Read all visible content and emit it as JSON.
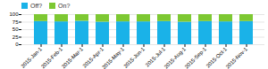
{
  "chart_data": {
    "type": "bar",
    "stacked": true,
    "categories": [
      "2015-Jan-1",
      "2015-Feb-1",
      "2015-Mar-1",
      "2015-Apr-1",
      "2015-May-1",
      "2015-Jun-1",
      "2015-Jul-1",
      "2015-Aug-1",
      "2015-Sep-1",
      "2015-Oct-1",
      "2015-Nov-1"
    ],
    "series": [
      {
        "name": "Off?",
        "color": "#1ab2e8",
        "values": [
          77,
          76,
          78,
          75,
          76,
          76,
          77,
          75,
          77,
          76,
          77
        ]
      },
      {
        "name": "On?",
        "color": "#7dc832",
        "values": [
          23,
          24,
          22,
          25,
          24,
          24,
          23,
          25,
          23,
          24,
          23
        ]
      }
    ],
    "ylim": [
      0,
      100
    ],
    "yticks": [
      0,
      25,
      50,
      75,
      100
    ],
    "grid": true,
    "legend": "upper left"
  }
}
